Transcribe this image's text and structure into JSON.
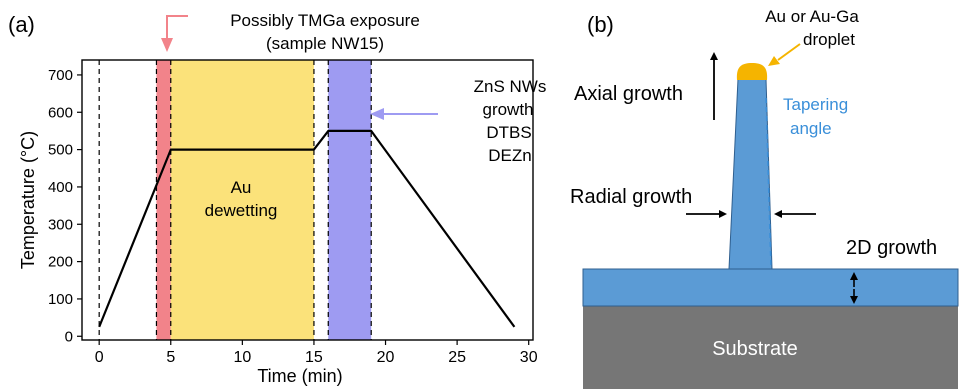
{
  "panel_a": {
    "label": "(a)",
    "annotation_pink": [
      "Possibly TMGa exposure",
      "(sample NW15)"
    ],
    "annotation_blue": [
      "ZnS NWs",
      "growth",
      "DTBS",
      "DEZn"
    ],
    "region_text": [
      "Au",
      "dewetting"
    ]
  },
  "panel_b": {
    "label": "(b)",
    "droplet_label": [
      "Au or Au-Ga",
      "droplet"
    ],
    "axial_label": "Axial growth",
    "tapering_label": [
      "Tapering",
      "angle"
    ],
    "radial_label": "Radial growth",
    "growth2d_label": "2D growth",
    "substrate_label": "Substrate"
  },
  "colors": {
    "pink": "#f2838a",
    "yellow": "#fbe27a",
    "blue": "#9e9bf2",
    "nanowire": "#5b9bd5",
    "substrate": "#767676",
    "droplet": "#f5b400",
    "tapering": "#3a8fd9"
  },
  "chart_data": {
    "type": "line",
    "xlabel": "Time (min)",
    "ylabel": "Temperature (°C)",
    "xlim": [
      -1.2,
      30.3
    ],
    "ylim": [
      -10,
      740
    ],
    "xticks": [
      0,
      5,
      10,
      15,
      20,
      25,
      30
    ],
    "yticks": [
      0,
      100,
      200,
      300,
      400,
      500,
      600,
      700
    ],
    "grid": false,
    "series": [
      {
        "x": [
          0,
          5,
          15,
          16,
          19,
          29
        ],
        "y": [
          25,
          500,
          500,
          550,
          550,
          25
        ]
      }
    ],
    "shaded_regions": [
      {
        "x0": 4,
        "x1": 5,
        "color": "pink"
      },
      {
        "x0": 5,
        "x1": 15,
        "color": "yellow"
      },
      {
        "x0": 16,
        "x1": 19,
        "color": "blue"
      }
    ],
    "dashed_lines_x": [
      0,
      4,
      5,
      15,
      16,
      19
    ]
  }
}
